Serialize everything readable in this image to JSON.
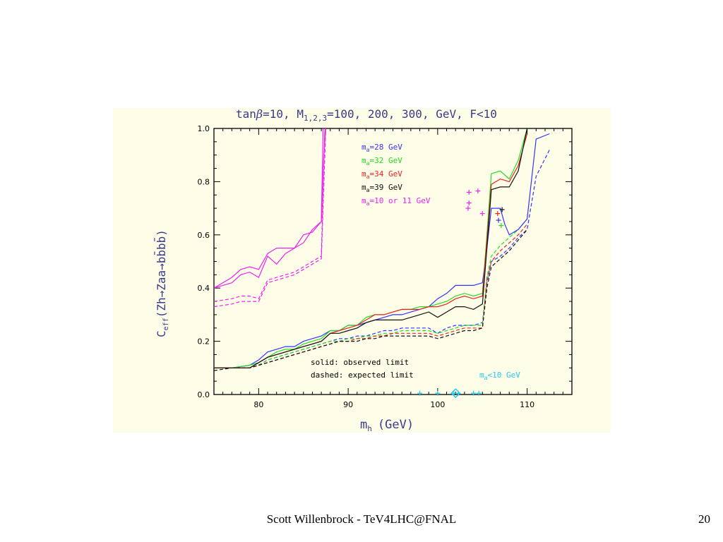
{
  "footer": {
    "author": "Scott Willenbrock - TeV4LHC@FNAL",
    "page_number": "20"
  },
  "chart_data": {
    "type": "line",
    "title": "tanβ=10, M1,2,3=100, 200, 300, GeV, F<10",
    "title_parts": {
      "a": "tan",
      "b": "β",
      "c": "=10, M",
      "d": "1,2,3",
      "e": "=100, 200, 300, GeV, F<10"
    },
    "xlabel": "m",
    "xlabel_sub": "h",
    "xlabel_unit": "(GeV)",
    "ylabel": "C",
    "ylabel_sub": "eff",
    "ylabel_rest": "(Zh→Zaa→bb̄bb̄)",
    "xlim": [
      75,
      115
    ],
    "ylim": [
      0,
      1.0
    ],
    "x_ticks": [
      "80",
      "90",
      "100",
      "110"
    ],
    "x_tick_values": [
      80,
      90,
      100,
      110
    ],
    "y_ticks": [
      "0.0",
      "0.2",
      "0.4",
      "0.6",
      "0.8",
      "1.0"
    ],
    "y_tick_values": [
      0,
      0.2,
      0.4,
      0.6,
      0.8,
      1.0
    ],
    "legend": [
      {
        "label": "m",
        "sub": "a",
        "rest": "=28 GeV",
        "color": "#3333ff"
      },
      {
        "label": "m",
        "sub": "a",
        "rest": "=32 GeV",
        "color": "#22dd22"
      },
      {
        "label": "m",
        "sub": "a",
        "rest": "=34 GeV",
        "color": "#ee2222"
      },
      {
        "label": "m",
        "sub": "a",
        "rest": "=39 GeV",
        "color": "#111111"
      },
      {
        "label": "m",
        "sub": "a",
        "rest": "=10 or 11 GeV",
        "color": "#ee22ee"
      }
    ],
    "annotations": {
      "solid": "solid: observed limit",
      "dashed": "dashed: expected limit",
      "low_ma_label": "m",
      "low_ma_sub": "a",
      "low_ma_rest": "<10 GeV",
      "low_ma_color": "#22ccee"
    },
    "series": [
      {
        "name": "m_a=28 GeV",
        "style": "solid",
        "color": "#3333ff",
        "x": [
          75,
          77,
          79,
          80,
          81,
          82,
          83,
          84,
          85,
          86,
          87,
          88,
          89,
          90,
          91,
          92,
          93,
          94,
          95,
          96,
          97,
          98,
          99,
          100,
          101,
          102,
          103,
          104,
          105,
          105.5,
          106,
          106.5,
          107,
          107.5,
          108,
          109,
          110,
          111,
          112.5
        ],
        "y": [
          0.1,
          0.1,
          0.11,
          0.13,
          0.16,
          0.17,
          0.18,
          0.18,
          0.2,
          0.21,
          0.22,
          0.24,
          0.24,
          0.26,
          0.26,
          0.27,
          0.28,
          0.29,
          0.3,
          0.3,
          0.31,
          0.32,
          0.33,
          0.36,
          0.38,
          0.41,
          0.41,
          0.41,
          0.42,
          0.55,
          0.7,
          0.7,
          0.7,
          0.64,
          0.6,
          0.62,
          0.66,
          0.96,
          0.98
        ]
      },
      {
        "name": "m_a=32 GeV",
        "style": "solid",
        "color": "#22dd22",
        "x": [
          75,
          77,
          79,
          80,
          81,
          82,
          83,
          84,
          85,
          86,
          87,
          88,
          89,
          90,
          91,
          92,
          93,
          94,
          95,
          96,
          97,
          98,
          99,
          100,
          101,
          102,
          103,
          104,
          105,
          105.5,
          106,
          107,
          108,
          109,
          110
        ],
        "y": [
          0.1,
          0.1,
          0.11,
          0.12,
          0.14,
          0.16,
          0.17,
          0.17,
          0.19,
          0.2,
          0.21,
          0.24,
          0.24,
          0.26,
          0.26,
          0.29,
          0.3,
          0.3,
          0.31,
          0.32,
          0.32,
          0.33,
          0.33,
          0.34,
          0.35,
          0.37,
          0.38,
          0.37,
          0.38,
          0.6,
          0.83,
          0.84,
          0.81,
          0.88,
          1.0
        ]
      },
      {
        "name": "m_a=34 GeV",
        "style": "solid",
        "color": "#ee2222",
        "x": [
          75,
          77,
          79,
          80,
          81,
          82,
          83,
          84,
          85,
          86,
          87,
          88,
          89,
          90,
          91,
          92,
          93,
          94,
          95,
          96,
          97,
          98,
          99,
          100,
          101,
          102,
          103,
          104,
          105,
          105.5,
          106,
          107,
          108,
          109,
          110
        ],
        "y": [
          0.1,
          0.1,
          0.1,
          0.12,
          0.14,
          0.15,
          0.16,
          0.17,
          0.18,
          0.19,
          0.2,
          0.23,
          0.24,
          0.25,
          0.26,
          0.28,
          0.3,
          0.3,
          0.31,
          0.32,
          0.32,
          0.32,
          0.33,
          0.33,
          0.34,
          0.36,
          0.37,
          0.36,
          0.37,
          0.58,
          0.79,
          0.81,
          0.8,
          0.86,
          0.98
        ]
      },
      {
        "name": "m_a=39 GeV",
        "style": "solid",
        "color": "#111111",
        "x": [
          75,
          77,
          79,
          80,
          81,
          82,
          83,
          84,
          85,
          86,
          87,
          88,
          89,
          90,
          91,
          92,
          93,
          94,
          95,
          96,
          97,
          98,
          99,
          100,
          101,
          102,
          103,
          104,
          105,
          105.5,
          106,
          107,
          108,
          109,
          110
        ],
        "y": [
          0.1,
          0.1,
          0.1,
          0.12,
          0.14,
          0.15,
          0.16,
          0.17,
          0.18,
          0.19,
          0.2,
          0.23,
          0.23,
          0.24,
          0.25,
          0.27,
          0.28,
          0.28,
          0.28,
          0.28,
          0.29,
          0.3,
          0.31,
          0.29,
          0.31,
          0.33,
          0.33,
          0.32,
          0.34,
          0.55,
          0.77,
          0.78,
          0.78,
          0.84,
          1.0
        ]
      },
      {
        "name": "m_a=10 or 11 GeV",
        "style": "solid",
        "color": "#ee22ee",
        "x": [
          75,
          77,
          78,
          79,
          80,
          81,
          82,
          83,
          84,
          85,
          86,
          87,
          87.2
        ],
        "y": [
          0.4,
          0.44,
          0.47,
          0.48,
          0.47,
          0.53,
          0.55,
          0.55,
          0.55,
          0.6,
          0.61,
          0.65,
          1.0
        ]
      },
      {
        "name": "m_a=10 or 11 GeV",
        "style": "solid",
        "color": "#ee22ee",
        "x": [
          75,
          77,
          78,
          79,
          80,
          81,
          82,
          83,
          84,
          85,
          86,
          87,
          87.4
        ],
        "y": [
          0.4,
          0.42,
          0.45,
          0.46,
          0.44,
          0.52,
          0.49,
          0.53,
          0.55,
          0.57,
          0.62,
          0.65,
          1.0
        ]
      },
      {
        "name": "m_a=28 GeV",
        "style": "dashed",
        "color": "#3333ff",
        "x": [
          75,
          77,
          79,
          80,
          81,
          82,
          83,
          84,
          85,
          86,
          87,
          88,
          89,
          90,
          91,
          92,
          93,
          94,
          95,
          96,
          97,
          98,
          99,
          100,
          101,
          102,
          103,
          104,
          105,
          105.5,
          106,
          107,
          108,
          109,
          110,
          111,
          112.5
        ],
        "y": [
          0.1,
          0.1,
          0.1,
          0.11,
          0.13,
          0.14,
          0.15,
          0.16,
          0.17,
          0.18,
          0.19,
          0.2,
          0.21,
          0.21,
          0.22,
          0.22,
          0.23,
          0.24,
          0.24,
          0.25,
          0.25,
          0.25,
          0.25,
          0.23,
          0.25,
          0.26,
          0.26,
          0.26,
          0.27,
          0.42,
          0.5,
          0.52,
          0.55,
          0.59,
          0.62,
          0.82,
          0.92
        ]
      },
      {
        "name": "m_a=32 GeV",
        "style": "dashed",
        "color": "#22dd22",
        "x": [
          75,
          77,
          79,
          80,
          81,
          82,
          83,
          84,
          85,
          86,
          87,
          88,
          89,
          90,
          91,
          92,
          93,
          94,
          95,
          96,
          97,
          98,
          99,
          100,
          101,
          102,
          103,
          104,
          105,
          105.5,
          106,
          107,
          108,
          109,
          110
        ],
        "y": [
          0.1,
          0.1,
          0.1,
          0.11,
          0.13,
          0.14,
          0.15,
          0.16,
          0.17,
          0.18,
          0.19,
          0.2,
          0.2,
          0.21,
          0.21,
          0.22,
          0.22,
          0.23,
          0.23,
          0.24,
          0.24,
          0.24,
          0.24,
          0.23,
          0.24,
          0.25,
          0.26,
          0.26,
          0.26,
          0.44,
          0.52,
          0.56,
          0.59,
          0.62,
          0.66
        ]
      },
      {
        "name": "m_a=34 GeV",
        "style": "dashed",
        "color": "#ee2222",
        "x": [
          75,
          77,
          79,
          80,
          81,
          82,
          83,
          84,
          85,
          86,
          87,
          88,
          89,
          90,
          91,
          92,
          93,
          94,
          95,
          96,
          97,
          98,
          99,
          100,
          101,
          102,
          103,
          104,
          105,
          105.5,
          106,
          107,
          108,
          109,
          110
        ],
        "y": [
          0.1,
          0.1,
          0.1,
          0.11,
          0.12,
          0.13,
          0.14,
          0.15,
          0.16,
          0.17,
          0.18,
          0.19,
          0.2,
          0.2,
          0.21,
          0.21,
          0.22,
          0.22,
          0.23,
          0.23,
          0.23,
          0.23,
          0.23,
          0.22,
          0.23,
          0.24,
          0.25,
          0.25,
          0.25,
          0.43,
          0.5,
          0.54,
          0.57,
          0.6,
          0.64
        ]
      },
      {
        "name": "m_a=39 GeV",
        "style": "dashed",
        "color": "#111111",
        "x": [
          75,
          77,
          79,
          80,
          81,
          82,
          83,
          84,
          85,
          86,
          87,
          88,
          89,
          90,
          91,
          92,
          93,
          94,
          95,
          96,
          97,
          98,
          99,
          100,
          101,
          102,
          103,
          104,
          105,
          105.5,
          106,
          107,
          108,
          109,
          110
        ],
        "y": [
          0.09,
          0.1,
          0.1,
          0.11,
          0.12,
          0.13,
          0.14,
          0.15,
          0.16,
          0.17,
          0.18,
          0.19,
          0.2,
          0.2,
          0.2,
          0.21,
          0.21,
          0.22,
          0.22,
          0.22,
          0.22,
          0.22,
          0.22,
          0.21,
          0.22,
          0.23,
          0.24,
          0.24,
          0.25,
          0.4,
          0.48,
          0.51,
          0.54,
          0.58,
          0.62
        ]
      },
      {
        "name": "m_a=10 or 11 GeV",
        "style": "dashed",
        "color": "#ee22ee",
        "x": [
          75,
          77,
          78,
          79,
          80,
          81,
          82,
          83,
          84,
          85,
          86,
          87,
          87.3,
          87.5
        ],
        "y": [
          0.35,
          0.36,
          0.37,
          0.37,
          0.36,
          0.43,
          0.44,
          0.45,
          0.46,
          0.48,
          0.5,
          0.52,
          0.9,
          1.0
        ]
      },
      {
        "name": "m_a=10 or 11 GeV",
        "style": "dashed",
        "color": "#ee22ee",
        "x": [
          75,
          77,
          78,
          79,
          80,
          81,
          82,
          83,
          84,
          85,
          86,
          87,
          87.5
        ],
        "y": [
          0.33,
          0.34,
          0.35,
          0.35,
          0.35,
          0.42,
          0.43,
          0.44,
          0.45,
          0.47,
          0.49,
          0.51,
          1.0
        ]
      }
    ],
    "markers": [
      {
        "x": 103.5,
        "y": 0.76,
        "color": "#ee22ee"
      },
      {
        "x": 104.5,
        "y": 0.765,
        "color": "#ee22ee"
      },
      {
        "x": 103.5,
        "y": 0.72,
        "color": "#ee22ee"
      },
      {
        "x": 103.4,
        "y": 0.7,
        "color": "#ee22ee"
      },
      {
        "x": 105.0,
        "y": 0.68,
        "color": "#ee22ee"
      },
      {
        "x": 106.7,
        "y": 0.68,
        "color": "#ee2222"
      },
      {
        "x": 107.2,
        "y": 0.695,
        "color": "#111111"
      },
      {
        "x": 106.8,
        "y": 0.655,
        "color": "#3333ff"
      },
      {
        "x": 107.1,
        "y": 0.635,
        "color": "#22dd22"
      },
      {
        "x": 98.0,
        "y": 0.005,
        "color": "#22ccee"
      },
      {
        "x": 100.0,
        "y": 0.005,
        "color": "#22ccee"
      },
      {
        "x": 101.8,
        "y": 0.005,
        "color": "#22ccee"
      },
      {
        "x": 102.3,
        "y": 0.005,
        "color": "#22ccee"
      },
      {
        "x": 104.0,
        "y": 0.005,
        "color": "#22ccee"
      },
      {
        "x": 104.6,
        "y": 0.005,
        "color": "#22ccee"
      }
    ],
    "diamond_markers": [
      {
        "x": 102.0,
        "y": 0.005,
        "color": "#22ccee"
      }
    ]
  }
}
